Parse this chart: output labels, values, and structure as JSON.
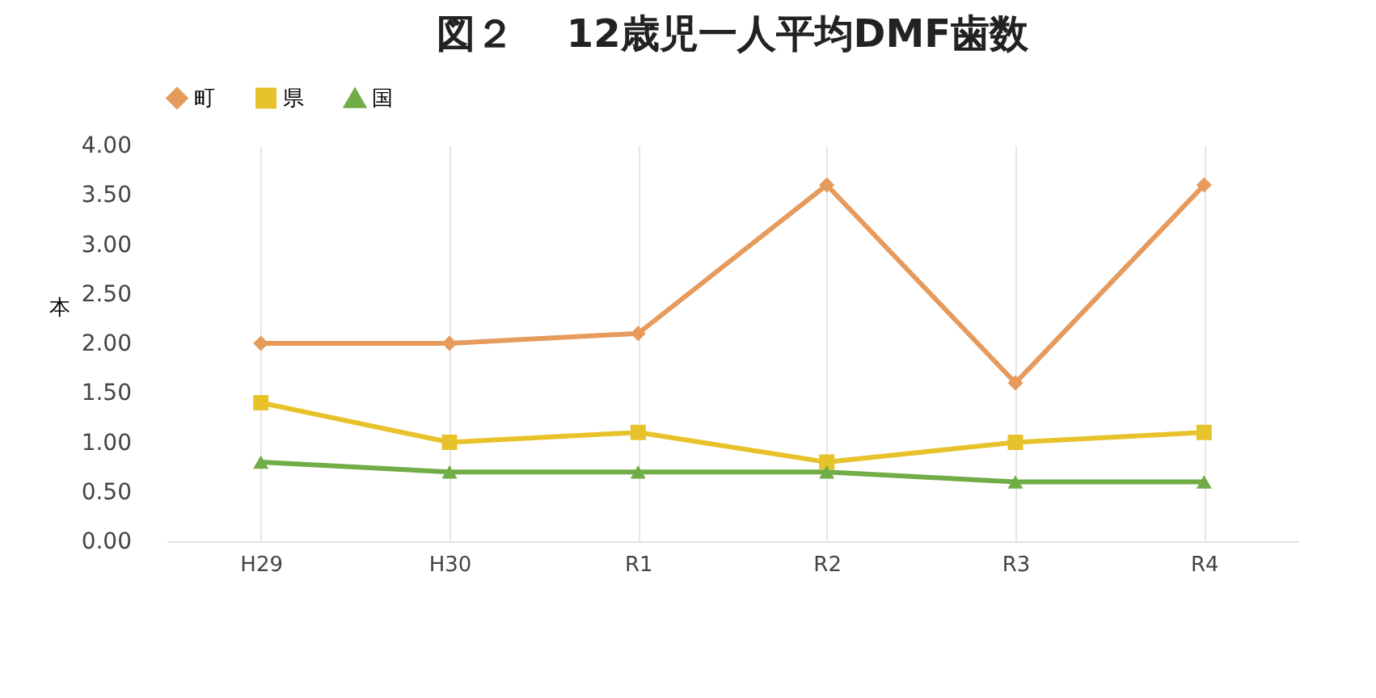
{
  "chart_data": {
    "type": "line",
    "title": "図２　 12歳児一人平均DMF歯数",
    "ylabel": "本",
    "categories": [
      "H29",
      "H30",
      "R1",
      "R2",
      "R3",
      "R4"
    ],
    "series": [
      {
        "name": "町",
        "color": "#e69a5c",
        "marker": "diamond",
        "values": [
          2.0,
          2.0,
          2.1,
          3.6,
          1.6,
          3.6
        ]
      },
      {
        "name": "県",
        "color": "#e8c22a",
        "marker": "square",
        "values": [
          1.4,
          1.0,
          1.1,
          0.8,
          1.0,
          1.1
        ]
      },
      {
        "name": "国",
        "color": "#70ad47",
        "marker": "triangle",
        "values": [
          0.8,
          0.7,
          0.7,
          0.7,
          0.6,
          0.6
        ]
      }
    ],
    "ylim": [
      0,
      4
    ],
    "yticks": [
      {
        "value": 0,
        "label": "0.00"
      },
      {
        "value": 0.5,
        "label": "0.50"
      },
      {
        "value": 1,
        "label": "1.00"
      },
      {
        "value": 1.5,
        "label": "1.50"
      },
      {
        "value": 2,
        "label": "2.00"
      },
      {
        "value": 2.5,
        "label": "2.50"
      },
      {
        "value": 3,
        "label": "3.00"
      },
      {
        "value": 3.5,
        "label": "3.50"
      },
      {
        "value": 4,
        "label": "4.00"
      }
    ],
    "grid": "x",
    "legend": "top"
  }
}
